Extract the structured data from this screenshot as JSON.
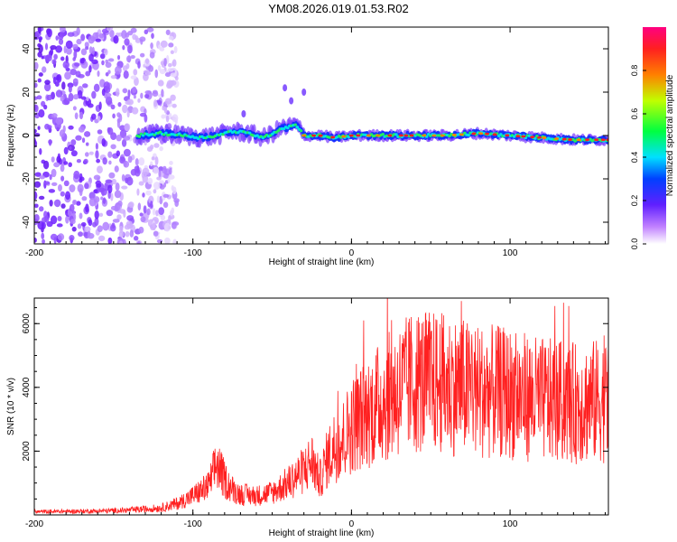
{
  "title": "YM08.2026.019.01.53.R02",
  "chart_data": [
    {
      "type": "heatmap",
      "xlabel": "Height of straight line (km)",
      "ylabel": "Frequency (Hz)",
      "xlim": [
        -200,
        162
      ],
      "ylim": [
        -50,
        50
      ],
      "xticks": [
        -200,
        -100,
        0,
        100
      ],
      "yticks": [
        -40,
        -20,
        0,
        20,
        40
      ],
      "colorbar": {
        "label": "Normalized spectral amplitude",
        "range": [
          0,
          1
        ],
        "ticks": [
          "0.0",
          "0.2",
          "0.4",
          "0.6",
          "0.8"
        ]
      },
      "signal_trace": {
        "x": [
          -135,
          -120,
          -105,
          -95,
          -85,
          -75,
          -65,
          -55,
          -45,
          -35,
          -30,
          -20,
          -10,
          0,
          20,
          40,
          60,
          80,
          100,
          120,
          140,
          162
        ],
        "freq": [
          0,
          1,
          0,
          -1,
          0,
          2,
          1,
          -1,
          3,
          5,
          0,
          0,
          -1,
          0,
          0,
          0,
          0,
          1,
          0,
          -1,
          -2,
          -2
        ]
      },
      "noise_region_km": [
        -200,
        -110
      ]
    },
    {
      "type": "line",
      "xlabel": "Height of straight line (km)",
      "ylabel": "SNR (10 * v/v)",
      "xlim": [
        -200,
        162
      ],
      "ylim": [
        0,
        6800
      ],
      "xticks": [
        -200,
        -100,
        0,
        100
      ],
      "yticks": [
        2000,
        4000,
        6000
      ],
      "series": [
        {
          "name": "SNR",
          "color": "#ff2020",
          "x": [
            -200,
            -180,
            -160,
            -140,
            -120,
            -110,
            -100,
            -90,
            -85,
            -80,
            -75,
            -70,
            -60,
            -50,
            -40,
            -30,
            -25,
            -20,
            -15,
            -10,
            -5,
            0,
            10,
            20,
            30,
            40,
            60,
            80,
            100,
            120,
            140,
            162
          ],
          "y": [
            100,
            110,
            120,
            150,
            220,
            350,
            600,
            900,
            1600,
            1100,
            800,
            650,
            600,
            700,
            1000,
            1400,
            1700,
            1100,
            1800,
            2200,
            2400,
            2800,
            3200,
            3600,
            3900,
            4200,
            4100,
            3900,
            3800,
            3600,
            3500,
            3600
          ]
        }
      ]
    }
  ]
}
